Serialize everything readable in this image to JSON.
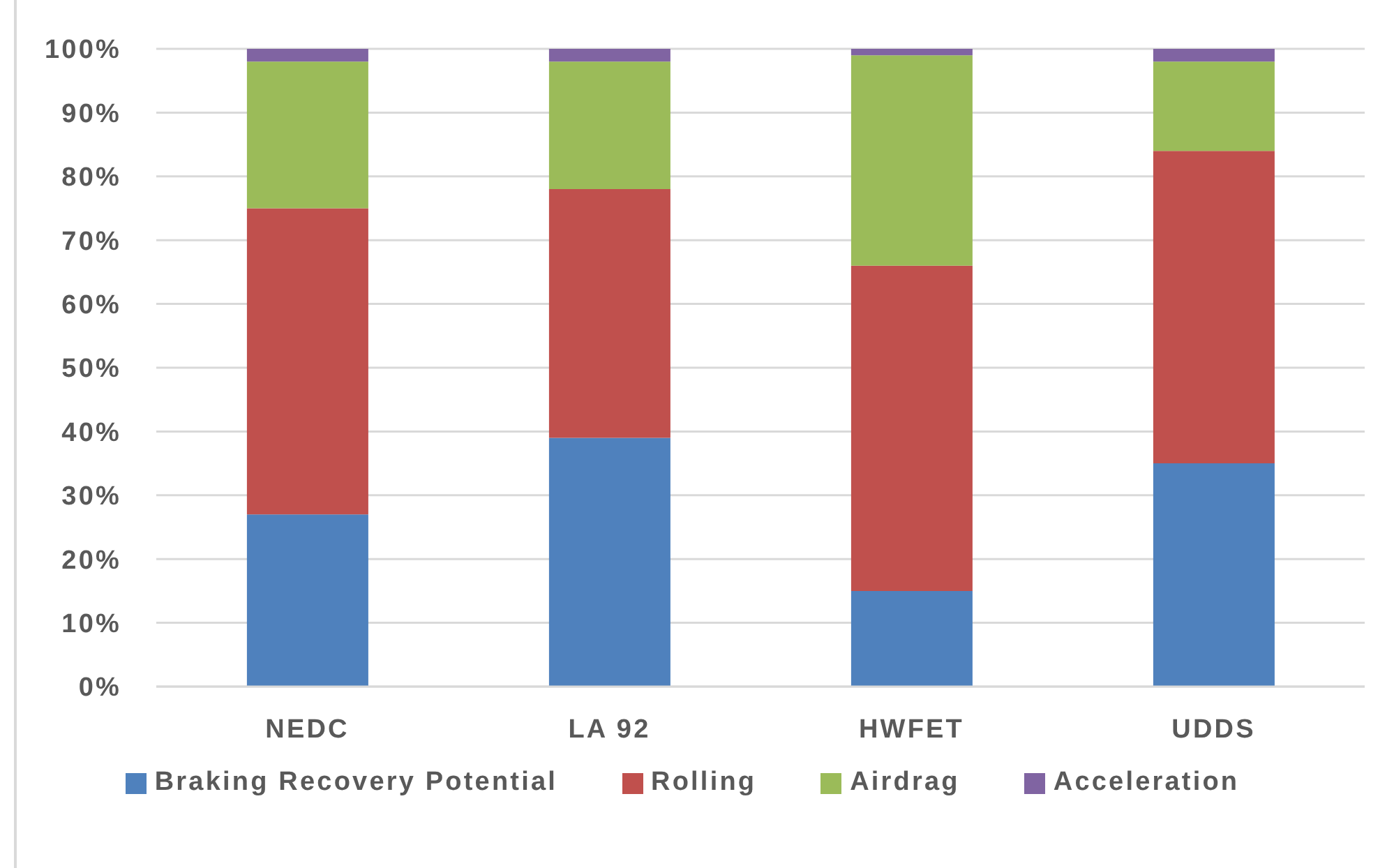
{
  "chart_data": {
    "type": "bar",
    "stacked": true,
    "categories": [
      "NEDC",
      "LA 92",
      "HWFET",
      "UDDS"
    ],
    "series": [
      {
        "name": "Braking Recovery Potential",
        "color": "#4f81bd",
        "values": [
          27,
          39,
          15,
          35
        ]
      },
      {
        "name": "Rolling",
        "color": "#c0504d",
        "values": [
          48,
          39,
          51,
          49
        ]
      },
      {
        "name": "Airdrag",
        "color": "#9bbb59",
        "values": [
          23,
          20,
          33,
          14
        ]
      },
      {
        "name": "Acceleration",
        "color": "#8064a2",
        "values": [
          2,
          2,
          1,
          2
        ]
      }
    ],
    "ylim": [
      0,
      100
    ],
    "yticks": [
      {
        "value": 0,
        "label": "0%"
      },
      {
        "value": 10,
        "label": "10%"
      },
      {
        "value": 20,
        "label": "20%"
      },
      {
        "value": 30,
        "label": "30%"
      },
      {
        "value": 40,
        "label": "40%"
      },
      {
        "value": 50,
        "label": "50%"
      },
      {
        "value": 60,
        "label": "60%"
      },
      {
        "value": 70,
        "label": "70%"
      },
      {
        "value": 80,
        "label": "80%"
      },
      {
        "value": 90,
        "label": "90%"
      },
      {
        "value": 100,
        "label": "100%"
      }
    ],
    "grid": "y",
    "legend": "bottom"
  }
}
